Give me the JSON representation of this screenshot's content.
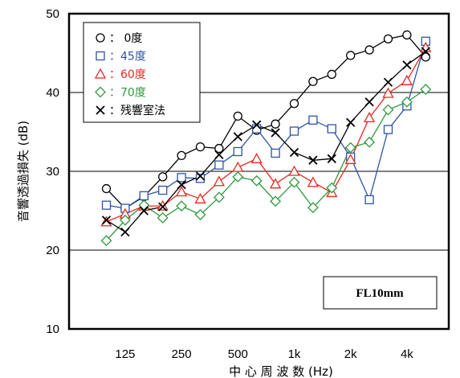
{
  "chart_data": {
    "type": "line",
    "xlabel": "中 心 周 波 数  (Hz)",
    "ylabel": "音響透過損失 (dB)",
    "ylim": [
      10,
      50
    ],
    "yticks": [
      10,
      20,
      30,
      40,
      50
    ],
    "x": [
      "100",
      "125",
      "160",
      "200",
      "250",
      "315",
      "400",
      "500",
      "630",
      "800",
      "1k",
      "1.25k",
      "1.6k",
      "2k",
      "2.5k",
      "3.15k",
      "4k",
      "5k"
    ],
    "xtick_labels": [
      "125",
      "250",
      "500",
      "1k",
      "2k",
      "4k"
    ],
    "xtick_indices": [
      1,
      4,
      7,
      10,
      13,
      16
    ],
    "grid": "horizontal",
    "legend_position": "top-left",
    "annotation": "FL10mm",
    "series": [
      {
        "name": "0度",
        "legend_marker": "○",
        "legend_text": "：  0度",
        "marker": "circle",
        "color": "#000000",
        "values": [
          27.8,
          25.3,
          26.8,
          29.3,
          32.0,
          33.1,
          32.9,
          37.0,
          35.2,
          36.0,
          38.6,
          41.4,
          42.3,
          44.7,
          45.4,
          46.8,
          47.3,
          44.5
        ]
      },
      {
        "name": "45度",
        "legend_marker": "□",
        "legend_text": "：45度",
        "marker": "square",
        "color": "#2e55a3",
        "values": [
          25.7,
          25.3,
          26.9,
          27.6,
          29.2,
          29.1,
          30.8,
          32.5,
          35.4,
          32.3,
          35.1,
          36.5,
          35.4,
          31.8,
          26.4,
          35.3,
          38.3,
          46.5
        ]
      },
      {
        "name": "60度",
        "legend_marker": "△",
        "legend_text": "：60度",
        "marker": "triangle",
        "color": "#e8271f",
        "values": [
          23.6,
          24.6,
          25.6,
          25.6,
          27.4,
          26.5,
          28.7,
          30.5,
          31.6,
          28.4,
          30.0,
          28.6,
          27.3,
          31.5,
          36.8,
          39.9,
          41.5,
          45.7
        ]
      },
      {
        "name": "70度",
        "legend_marker": "◇",
        "legend_text": "：70度",
        "marker": "diamond",
        "color": "#2e9a3e",
        "values": [
          21.2,
          23.8,
          25.7,
          24.1,
          25.6,
          24.5,
          26.7,
          29.3,
          28.8,
          26.2,
          28.6,
          25.4,
          27.9,
          33.0,
          33.7,
          37.8,
          38.8,
          40.4
        ]
      },
      {
        "name": "残響室法",
        "legend_marker": "×",
        "legend_text": "：残響室法",
        "marker": "cross",
        "color": "#000000",
        "values": [
          23.8,
          22.3,
          25.0,
          25.5,
          28.3,
          29.4,
          32.1,
          34.4,
          35.9,
          34.9,
          32.4,
          31.4,
          31.6,
          36.2,
          38.8,
          41.3,
          43.5,
          45.2
        ]
      }
    ]
  }
}
